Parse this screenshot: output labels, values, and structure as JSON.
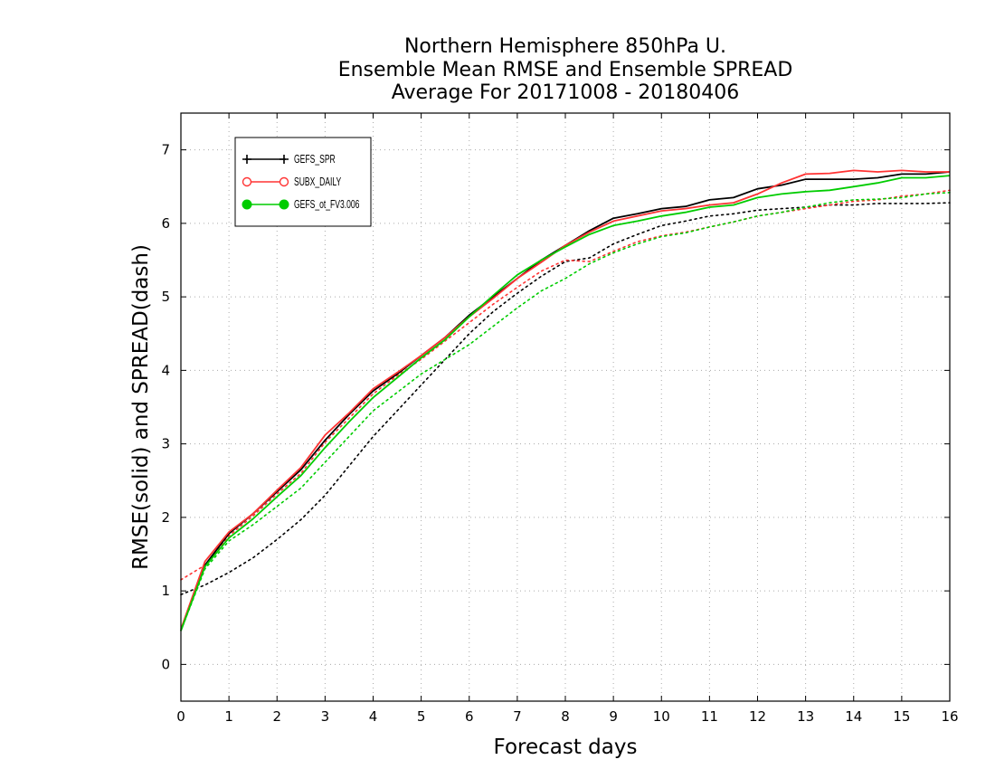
{
  "chart_data": {
    "type": "line",
    "title_lines": [
      "Northern Hemisphere 850hPa U.",
      "Ensemble Mean RMSE and Ensemble SPREAD",
      "Average For 20171008 - 20180406"
    ],
    "xlabel": "Forecast days",
    "ylabel": "RMSE(solid) and SPREAD(dash)",
    "xlim": [
      0,
      16
    ],
    "ylim": [
      -0.5,
      7.5
    ],
    "xticks": [
      0,
      1,
      2,
      3,
      4,
      5,
      6,
      7,
      8,
      9,
      10,
      11,
      12,
      13,
      14,
      15,
      16
    ],
    "yticks": [
      0,
      1,
      2,
      3,
      4,
      5,
      6,
      7
    ],
    "grid": true,
    "legend_position": "top-left",
    "x": [
      0,
      0.5,
      1,
      1.5,
      2,
      2.5,
      3,
      3.5,
      4,
      4.5,
      5,
      5.5,
      6,
      6.5,
      7,
      7.5,
      8,
      8.5,
      9,
      9.5,
      10,
      10.5,
      11,
      11.5,
      12,
      12.5,
      13,
      13.5,
      14,
      14.5,
      15,
      15.5,
      16
    ],
    "series": [
      {
        "name": "GEFS_SPR",
        "color": "#000000",
        "marker": "plus",
        "rmse": [
          0.46,
          1.35,
          1.78,
          2.05,
          2.35,
          2.65,
          3.05,
          3.4,
          3.72,
          3.95,
          4.2,
          4.45,
          4.75,
          5.0,
          5.25,
          5.5,
          5.7,
          5.9,
          6.07,
          6.13,
          6.2,
          6.23,
          6.32,
          6.35,
          6.47,
          6.52,
          6.6,
          6.6,
          6.6,
          6.62,
          6.67,
          6.67,
          6.7
        ],
        "spread": [
          0.95,
          1.08,
          1.25,
          1.45,
          1.7,
          1.97,
          2.3,
          2.7,
          3.1,
          3.45,
          3.8,
          4.15,
          4.5,
          4.8,
          5.05,
          5.28,
          5.48,
          5.53,
          5.72,
          5.85,
          5.97,
          6.03,
          6.1,
          6.13,
          6.18,
          6.2,
          6.22,
          6.25,
          6.25,
          6.27,
          6.27,
          6.27,
          6.28
        ]
      },
      {
        "name": "SUBX_DAILY",
        "color": "#ff3333",
        "marker": "circle-open",
        "rmse": [
          0.48,
          1.4,
          1.8,
          2.05,
          2.37,
          2.68,
          3.12,
          3.42,
          3.75,
          3.97,
          4.2,
          4.45,
          4.73,
          4.98,
          5.25,
          5.47,
          5.7,
          5.88,
          6.03,
          6.1,
          6.17,
          6.2,
          6.25,
          6.28,
          6.4,
          6.55,
          6.67,
          6.68,
          6.72,
          6.7,
          6.72,
          6.7,
          6.7
        ],
        "spread": [
          1.15,
          1.35,
          1.75,
          2.02,
          2.32,
          2.6,
          3.02,
          3.35,
          3.68,
          3.93,
          4.15,
          4.4,
          4.65,
          4.9,
          5.13,
          5.35,
          5.5,
          5.48,
          5.62,
          5.75,
          5.83,
          5.88,
          5.95,
          6.02,
          6.1,
          6.15,
          6.2,
          6.25,
          6.3,
          6.32,
          6.37,
          6.4,
          6.45
        ]
      },
      {
        "name": "GEFS_ot_FV3.006",
        "color": "#00cc00",
        "marker": "circle-filled",
        "rmse": [
          0.46,
          1.33,
          1.72,
          1.98,
          2.28,
          2.57,
          2.95,
          3.3,
          3.63,
          3.9,
          4.17,
          4.42,
          4.73,
          5.02,
          5.3,
          5.5,
          5.68,
          5.85,
          5.97,
          6.03,
          6.1,
          6.15,
          6.22,
          6.25,
          6.35,
          6.4,
          6.43,
          6.45,
          6.5,
          6.55,
          6.62,
          6.62,
          6.65
        ],
        "spread": [
          0.46,
          1.3,
          1.68,
          1.9,
          2.15,
          2.4,
          2.75,
          3.1,
          3.45,
          3.7,
          3.95,
          4.15,
          4.35,
          4.6,
          4.85,
          5.08,
          5.25,
          5.45,
          5.6,
          5.72,
          5.82,
          5.87,
          5.95,
          6.02,
          6.1,
          6.15,
          6.22,
          6.28,
          6.32,
          6.33,
          6.35,
          6.4,
          6.42
        ]
      }
    ]
  }
}
